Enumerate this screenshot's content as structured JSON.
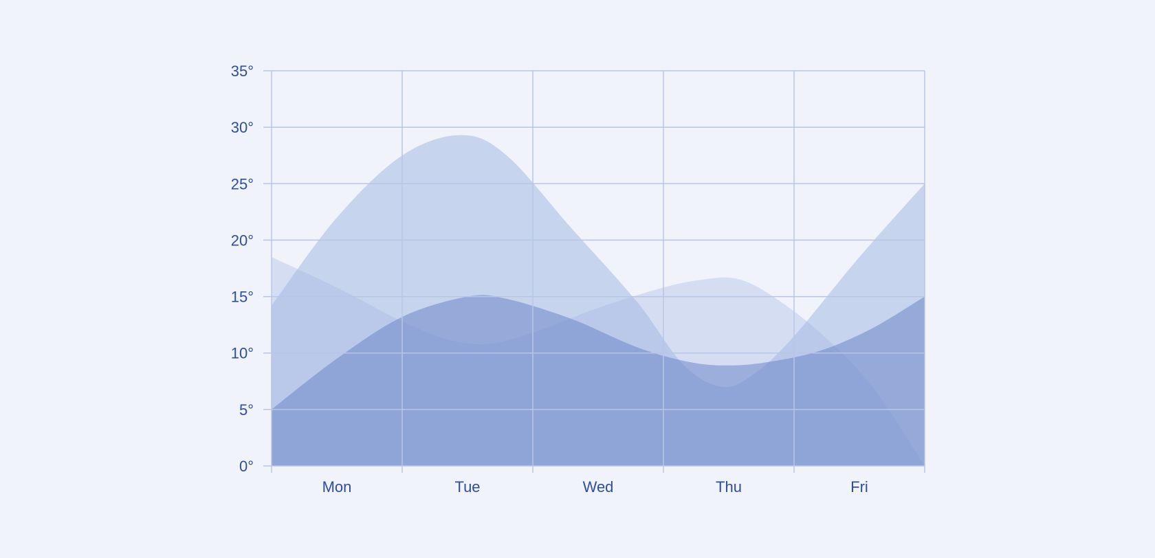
{
  "chart_data": {
    "type": "area",
    "categories": [
      "Mon",
      "Tue",
      "Wed",
      "Thu",
      "Fri"
    ],
    "x_boundaries": [
      0,
      1,
      2,
      3,
      4,
      5
    ],
    "y_ticks": [
      "0°",
      "5°",
      "10°",
      "15°",
      "20°",
      "25°",
      "30°",
      "35°"
    ],
    "ylim": [
      0,
      35
    ],
    "grid": true,
    "series": [
      {
        "points": [
          [
            0,
            14.2
          ],
          [
            0.5,
            22
          ],
          [
            1.0,
            27.5
          ],
          [
            1.45,
            29.3
          ],
          [
            1.8,
            27.5
          ],
          [
            2.3,
            21
          ],
          [
            2.8,
            14.5
          ],
          [
            3.15,
            9.0
          ],
          [
            3.45,
            7.0
          ],
          [
            3.7,
            8.2
          ],
          [
            4.0,
            11.5
          ],
          [
            4.5,
            18.5
          ],
          [
            5.0,
            25.0
          ]
        ],
        "color": "#a6b9e2",
        "opacity": 0.55
      },
      {
        "points": [
          [
            0,
            18.5
          ],
          [
            0.5,
            15.8
          ],
          [
            1.0,
            12.8
          ],
          [
            1.35,
            11.2
          ],
          [
            1.65,
            10.8
          ],
          [
            2.0,
            11.8
          ],
          [
            2.5,
            14.0
          ],
          [
            3.0,
            15.8
          ],
          [
            3.3,
            16.5
          ],
          [
            3.55,
            16.6
          ],
          [
            3.8,
            15.3
          ],
          [
            4.2,
            11.8
          ],
          [
            4.6,
            7.0
          ],
          [
            5.0,
            0
          ]
        ],
        "color": "#a6b9e2",
        "opacity": 0.38
      },
      {
        "points": [
          [
            0,
            5.0
          ],
          [
            0.5,
            9.5
          ],
          [
            1.0,
            13.2
          ],
          [
            1.5,
            15.0
          ],
          [
            1.8,
            14.8
          ],
          [
            2.3,
            13.0
          ],
          [
            2.8,
            10.5
          ],
          [
            3.2,
            9.2
          ],
          [
            3.5,
            8.9
          ],
          [
            3.8,
            9.2
          ],
          [
            4.2,
            10.2
          ],
          [
            4.6,
            12.2
          ],
          [
            5.0,
            15.0
          ]
        ],
        "color": "#6e87c9",
        "opacity": 0.55
      }
    ]
  }
}
